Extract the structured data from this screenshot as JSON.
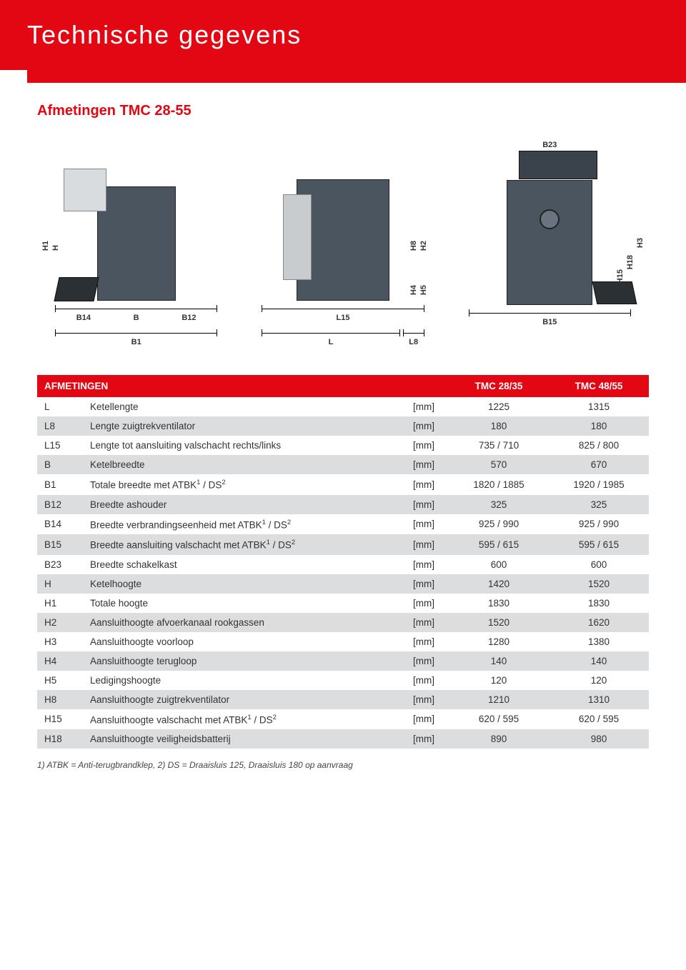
{
  "header": {
    "title": "Technische gegevens"
  },
  "section": {
    "title": "Afmetingen TMC 28-55"
  },
  "diagram_labels": {
    "d1": {
      "below_parts": [
        "B14",
        "B",
        "B12"
      ],
      "below_total": "B1",
      "side": [
        "H1",
        "H"
      ]
    },
    "d2": {
      "below_parts": [
        "L15"
      ],
      "below_total": "L",
      "below_right": "L8",
      "side": [
        "H8",
        "H2",
        "H4",
        "H5"
      ]
    },
    "d3": {
      "top": "B23",
      "below_parts": [
        "B15"
      ],
      "side": [
        "H15",
        "H18",
        "H3"
      ]
    }
  },
  "table": {
    "columns": [
      "AFMETINGEN",
      "",
      "",
      "TMC 28/35",
      "TMC 48/55"
    ],
    "unit_label": "[mm]",
    "rows": [
      {
        "code": "L",
        "label": "Ketellengte",
        "unit": "[mm]",
        "v1": "1225",
        "v2": "1315"
      },
      {
        "code": "L8",
        "label": "Lengte zuigtrekventilator",
        "unit": "[mm]",
        "v1": "180",
        "v2": "180"
      },
      {
        "code": "L15",
        "label": "Lengte tot aansluiting valschacht rechts/links",
        "unit": "[mm]",
        "v1": "735 / 710",
        "v2": "825 / 800"
      },
      {
        "code": "B",
        "label": "Ketelbreedte",
        "unit": "[mm]",
        "v1": "570",
        "v2": "670"
      },
      {
        "code": "B1",
        "label_html": "Totale breedte met ATBK<sup>1</sup> / DS<sup>2</sup>",
        "unit": "[mm]",
        "v1": "1820 / 1885",
        "v2": "1920 / 1985"
      },
      {
        "code": "B12",
        "label": "Breedte ashouder",
        "unit": "[mm]",
        "v1": "325",
        "v2": "325"
      },
      {
        "code": "B14",
        "label_html": "Breedte verbrandingseenheid met ATBK<sup>1</sup> / DS<sup>2</sup>",
        "unit": "[mm]",
        "v1": "925 / 990",
        "v2": "925 / 990"
      },
      {
        "code": "B15",
        "label_html": "Breedte aansluiting valschacht met ATBK<sup>1</sup> / DS<sup>2</sup>",
        "unit": "[mm]",
        "v1": "595 / 615",
        "v2": "595 / 615"
      },
      {
        "code": "B23",
        "label": "Breedte schakelkast",
        "unit": "[mm]",
        "v1": "600",
        "v2": "600"
      },
      {
        "code": "H",
        "label": "Ketelhoogte",
        "unit": "[mm]",
        "v1": "1420",
        "v2": "1520"
      },
      {
        "code": "H1",
        "label": "Totale hoogte",
        "unit": "[mm]",
        "v1": "1830",
        "v2": "1830"
      },
      {
        "code": "H2",
        "label": "Aansluithoogte afvoerkanaal rookgassen",
        "unit": "[mm]",
        "v1": "1520",
        "v2": "1620"
      },
      {
        "code": "H3",
        "label": "Aansluithoogte voorloop",
        "unit": "[mm]",
        "v1": "1280",
        "v2": "1380"
      },
      {
        "code": "H4",
        "label": "Aansluithoogte terugloop",
        "unit": "[mm]",
        "v1": "140",
        "v2": "140"
      },
      {
        "code": "H5",
        "label": "Ledigingshoogte",
        "unit": "[mm]",
        "v1": "120",
        "v2": "120"
      },
      {
        "code": "H8",
        "label": "Aansluithoogte zuigtrekventilator",
        "unit": "[mm]",
        "v1": "1210",
        "v2": "1310"
      },
      {
        "code": "H15",
        "label_html": "Aansluithoogte valschacht met ATBK<sup>1</sup> / DS<sup>2</sup>",
        "unit": "[mm]",
        "v1": "620 / 595",
        "v2": "620 / 595"
      },
      {
        "code": "H18",
        "label": "Aansluithoogte veiligheidsbatterij",
        "unit": "[mm]",
        "v1": "890",
        "v2": "980"
      }
    ]
  },
  "footnote": "1) ATBK = Anti-terugbrandklep, 2) DS = Draaisluis 125, Draaisluis 180 op aanvraag",
  "colors": {
    "brand_red": "#e30613",
    "row_alt": "#dcdddf",
    "machine": "#4a5560",
    "panel": "#d9dcde"
  }
}
